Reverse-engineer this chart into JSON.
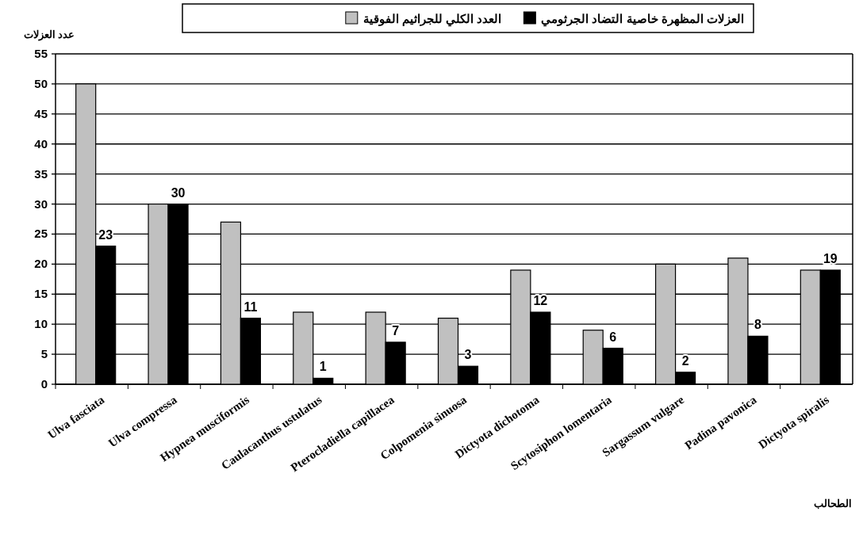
{
  "chart_data": {
    "type": "bar",
    "ylabel": "عدد العزلات",
    "xlabel": "الطحالب",
    "categories": [
      "Ulva fasciata",
      "Ulva compressa",
      "Hypnea musciformis",
      "Caulacanthus ustulatus",
      "Pterocladiella capillacea",
      "Colpomenia sinuosa",
      "Dictyota dichotoma",
      "Scytosiphon lomentaria",
      "Sargassum vulgare",
      "Padina pavonica",
      "Dictyota spiralis"
    ],
    "series": [
      {
        "name": "العدد الكلي للجراثيم الفوقية",
        "color": "#c0c0c0",
        "values": [
          50,
          30,
          27,
          12,
          12,
          11,
          19,
          9,
          20,
          21,
          19
        ]
      },
      {
        "name": "العزلات المظهرة خاصية التضاد الجرثومي",
        "color": "#000000",
        "values": [
          23,
          30,
          11,
          1,
          7,
          3,
          12,
          6,
          2,
          8,
          19
        ],
        "value_labels": [
          "23",
          "30",
          "11",
          "1",
          "7",
          "3",
          "12",
          "6",
          "2",
          "8",
          "19"
        ]
      }
    ],
    "ylim": [
      0,
      55
    ],
    "yticks": [
      0,
      5,
      10,
      15,
      20,
      25,
      30,
      35,
      40,
      45,
      50,
      55
    ],
    "grid": "y",
    "legend": "top"
  }
}
